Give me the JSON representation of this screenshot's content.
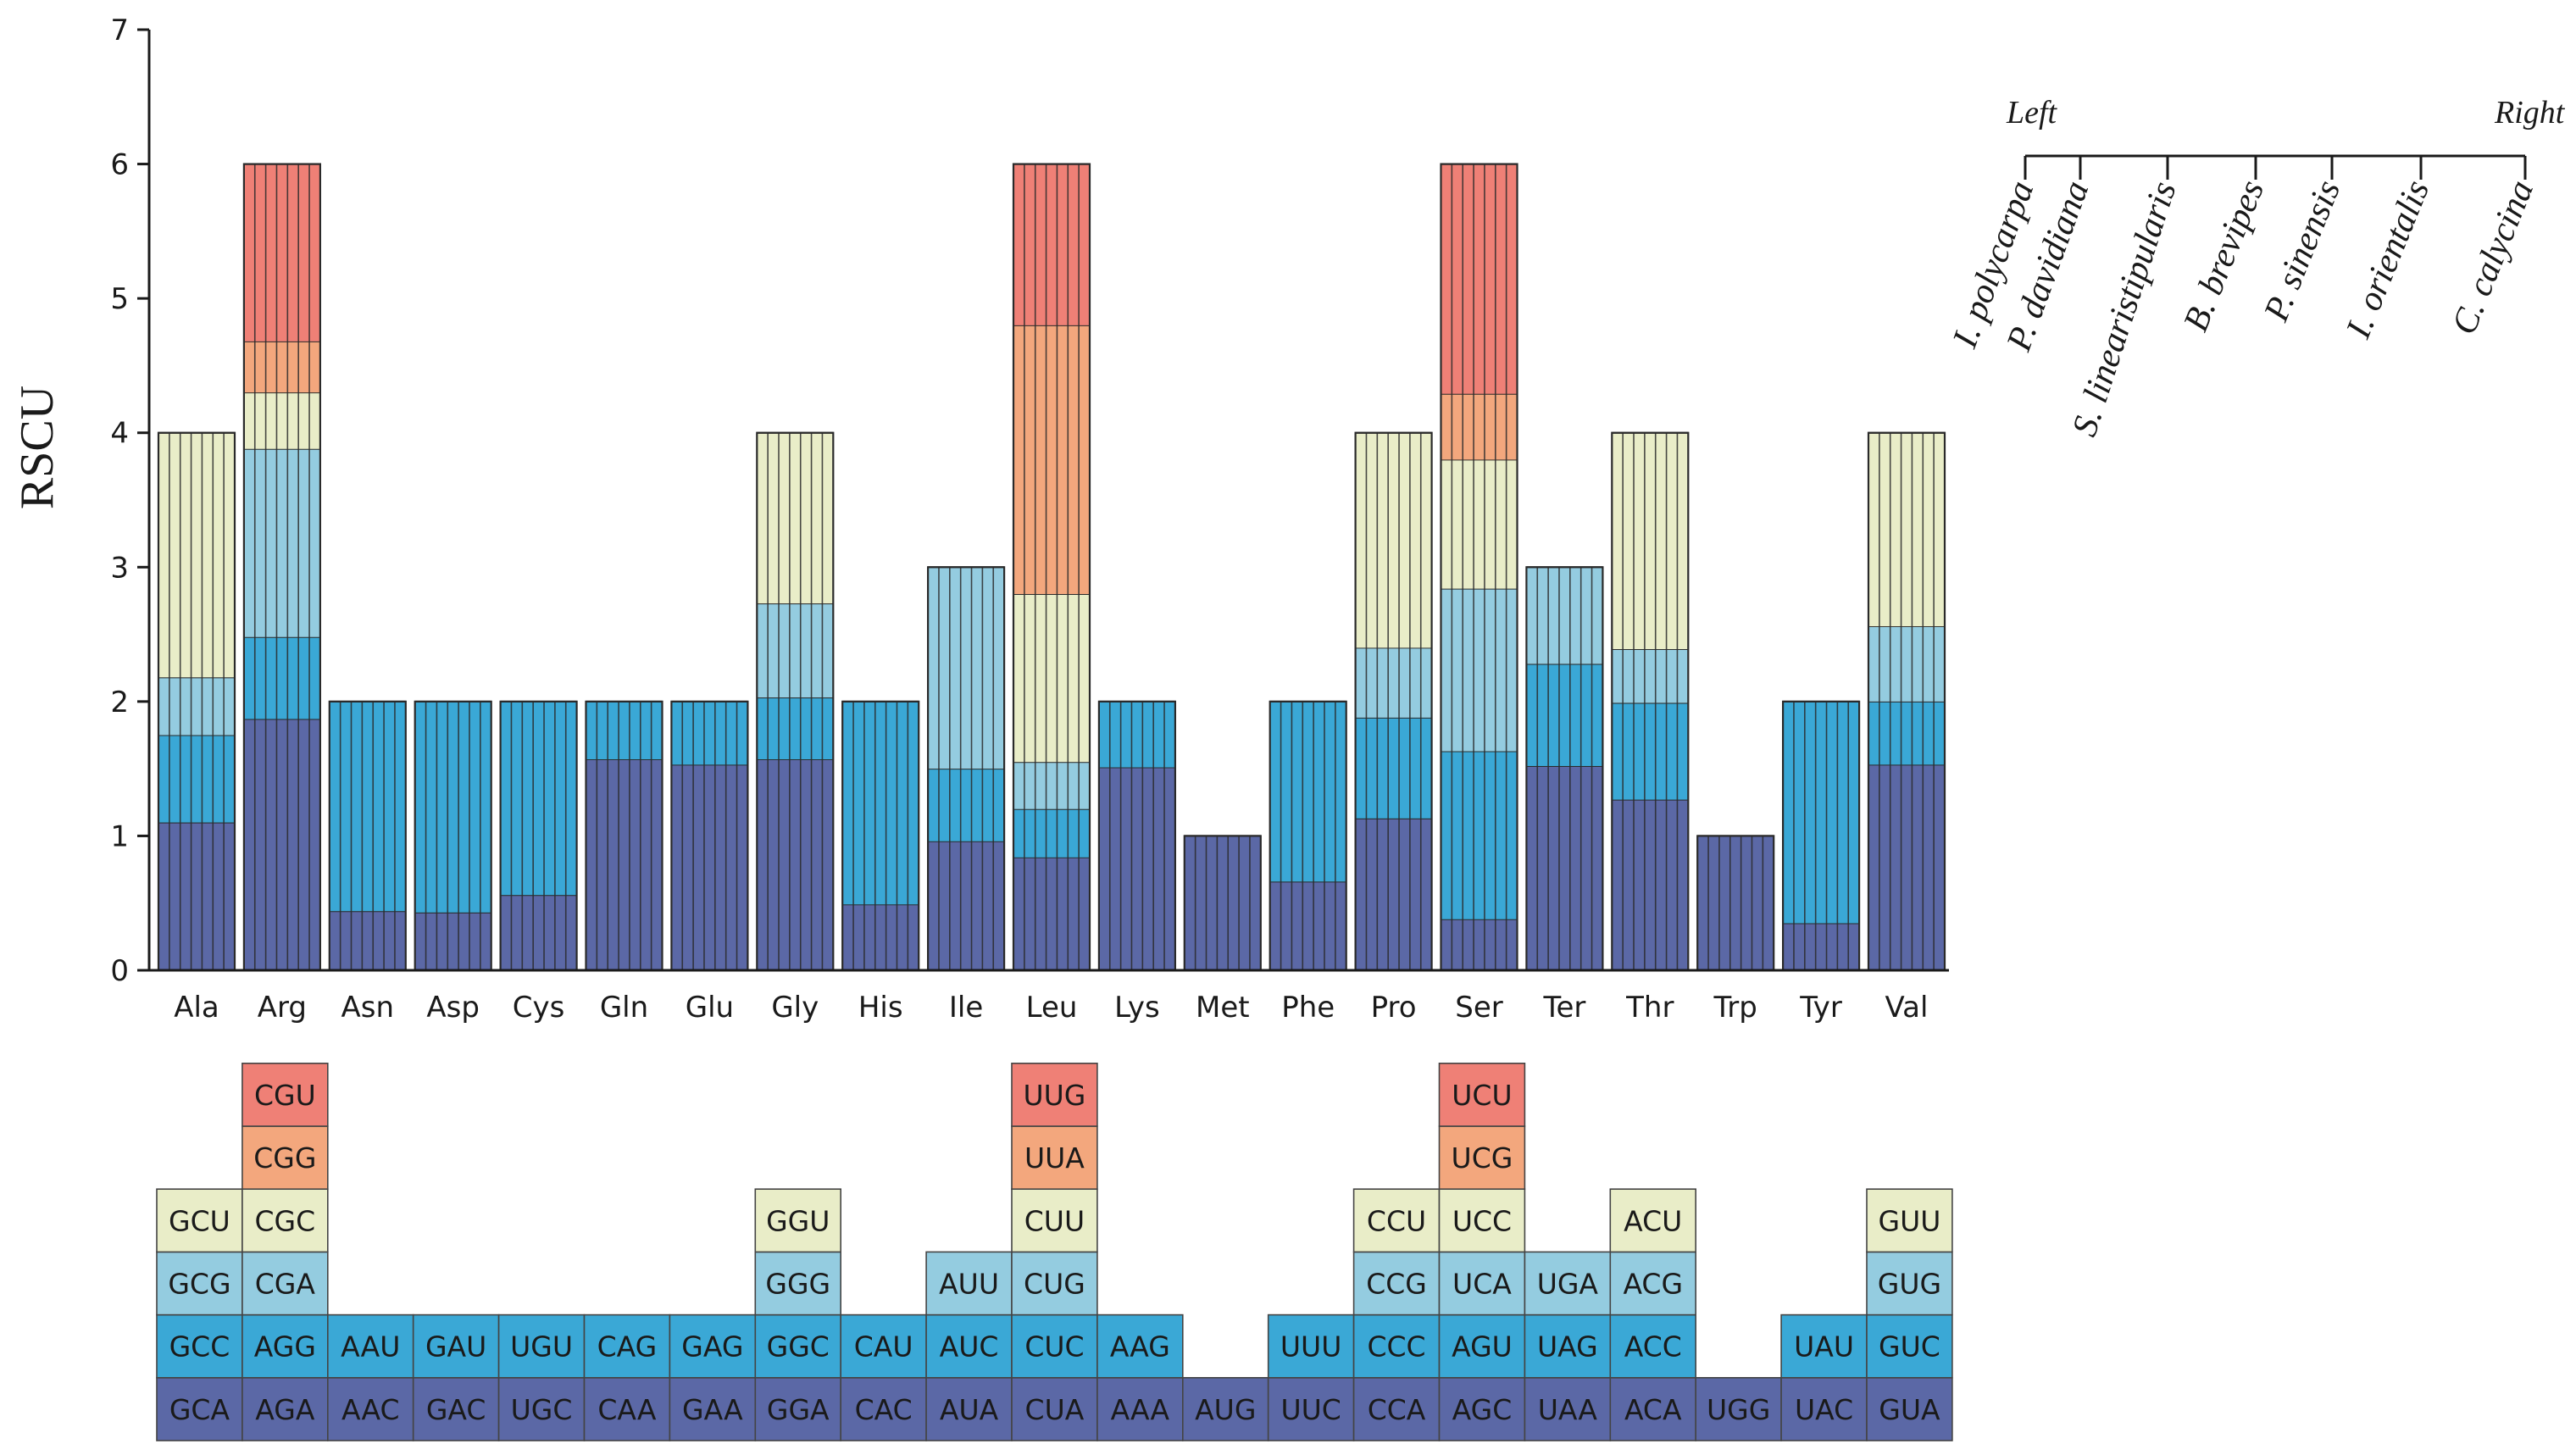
{
  "chart_data": {
    "type": "bar",
    "stacked": true,
    "ylabel": "RSCU",
    "ylim": [
      0,
      7
    ],
    "yticks": [
      0,
      1,
      2,
      3,
      4,
      5,
      6,
      7
    ],
    "species_per_bar": 7,
    "level_colors": [
      "#5b68a6",
      "#3aa8d6",
      "#94cce0",
      "#e9edc8",
      "#f3a77d",
      "#ef8076"
    ],
    "legend": {
      "left_label": "Left",
      "right_label": "Right",
      "species": [
        "I. polycarpa",
        "P. davidiana",
        "S. linearistipularis",
        "B. brevipes",
        "P. sinensis",
        "I. orientalis",
        "C. calycina"
      ]
    },
    "categories": [
      {
        "aa": "Ala",
        "codons": [
          "GCA",
          "GCC",
          "GCG",
          "GCU"
        ],
        "cum": [
          1.1,
          1.75,
          2.18,
          4.0
        ]
      },
      {
        "aa": "Arg",
        "codons": [
          "AGA",
          "AGG",
          "CGA",
          "CGC",
          "CGG",
          "CGU"
        ],
        "cum": [
          1.87,
          2.48,
          3.88,
          4.3,
          4.68,
          6.0
        ]
      },
      {
        "aa": "Asn",
        "codons": [
          "AAC",
          "AAU"
        ],
        "cum": [
          0.44,
          2.0
        ]
      },
      {
        "aa": "Asp",
        "codons": [
          "GAC",
          "GAU"
        ],
        "cum": [
          0.43,
          2.0
        ]
      },
      {
        "aa": "Cys",
        "codons": [
          "UGC",
          "UGU"
        ],
        "cum": [
          0.56,
          2.0
        ]
      },
      {
        "aa": "Gln",
        "codons": [
          "CAA",
          "CAG"
        ],
        "cum": [
          1.57,
          2.0
        ]
      },
      {
        "aa": "Glu",
        "codons": [
          "GAA",
          "GAG"
        ],
        "cum": [
          1.53,
          2.0
        ]
      },
      {
        "aa": "Gly",
        "codons": [
          "GGA",
          "GGC",
          "GGG",
          "GGU"
        ],
        "cum": [
          1.57,
          2.03,
          2.73,
          4.0
        ]
      },
      {
        "aa": "His",
        "codons": [
          "CAC",
          "CAU"
        ],
        "cum": [
          0.49,
          2.0
        ]
      },
      {
        "aa": "Ile",
        "codons": [
          "AUA",
          "AUC",
          "AUU"
        ],
        "cum": [
          0.96,
          1.5,
          3.0
        ]
      },
      {
        "aa": "Leu",
        "codons": [
          "CUA",
          "CUC",
          "CUG",
          "CUU",
          "UUA",
          "UUG"
        ],
        "cum": [
          0.84,
          1.2,
          1.55,
          2.8,
          4.8,
          6.0
        ]
      },
      {
        "aa": "Lys",
        "codons": [
          "AAA",
          "AAG"
        ],
        "cum": [
          1.51,
          2.0
        ]
      },
      {
        "aa": "Met",
        "codons": [
          "AUG"
        ],
        "cum": [
          1.0
        ]
      },
      {
        "aa": "Phe",
        "codons": [
          "UUC",
          "UUU"
        ],
        "cum": [
          0.66,
          2.0
        ]
      },
      {
        "aa": "Pro",
        "codons": [
          "CCA",
          "CCC",
          "CCG",
          "CCU"
        ],
        "cum": [
          1.13,
          1.88,
          2.4,
          4.0
        ]
      },
      {
        "aa": "Ser",
        "codons": [
          "AGC",
          "AGU",
          "UCA",
          "UCC",
          "UCG",
          "UCU"
        ],
        "cum": [
          0.38,
          1.63,
          2.84,
          3.8,
          4.29,
          6.0
        ]
      },
      {
        "aa": "Ter",
        "codons": [
          "UAA",
          "UAG",
          "UGA"
        ],
        "cum": [
          1.52,
          2.28,
          3.0
        ]
      },
      {
        "aa": "Thr",
        "codons": [
          "ACA",
          "ACC",
          "ACG",
          "ACU"
        ],
        "cum": [
          1.27,
          1.99,
          2.39,
          4.0
        ]
      },
      {
        "aa": "Trp",
        "codons": [
          "UGG"
        ],
        "cum": [
          1.0
        ]
      },
      {
        "aa": "Tyr",
        "codons": [
          "UAC",
          "UAU"
        ],
        "cum": [
          0.35,
          2.0
        ]
      },
      {
        "aa": "Val",
        "codons": [
          "GUA",
          "GUC",
          "GUG",
          "GUU"
        ],
        "cum": [
          1.53,
          2.0,
          2.56,
          4.0
        ]
      }
    ]
  }
}
